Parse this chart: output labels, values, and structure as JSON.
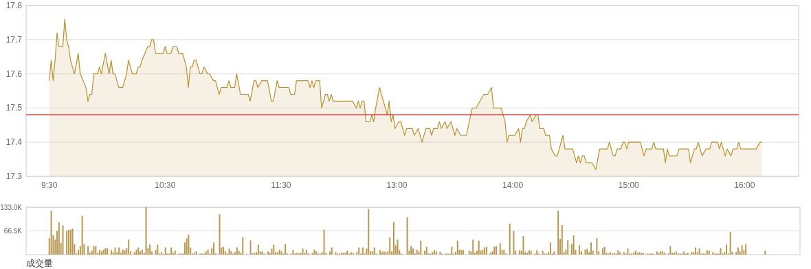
{
  "chart_data": [
    {
      "type": "area",
      "color": "#b8922e",
      "grid": "y",
      "categories": [
        "9:30",
        null,
        null,
        null,
        null,
        null,
        null,
        null,
        null,
        null,
        null,
        null,
        null,
        null,
        null,
        null,
        null,
        null,
        null,
        null,
        null,
        null,
        null,
        null,
        null,
        null,
        null,
        null,
        null,
        null,
        null,
        null,
        null,
        null,
        null,
        null,
        null,
        null,
        null,
        null,
        null,
        null,
        null,
        null,
        null,
        null,
        null,
        null,
        null,
        null,
        null,
        null,
        null,
        null,
        null,
        null,
        null,
        null,
        null,
        null,
        "10:30",
        null,
        null,
        null,
        null,
        null,
        null,
        null,
        null,
        null,
        null,
        null,
        null,
        null,
        null,
        null,
        null,
        null,
        null,
        null,
        null,
        null,
        null,
        null,
        null,
        null,
        null,
        null,
        null,
        null,
        null,
        null,
        null,
        null,
        null,
        null,
        null,
        null,
        null,
        null,
        null,
        null,
        null,
        null,
        null,
        null,
        null,
        null,
        null,
        null,
        null,
        null,
        null,
        null,
        null,
        null,
        null,
        null,
        null,
        null,
        "11:30",
        null,
        null,
        null,
        null,
        null,
        null,
        null,
        null,
        null,
        null,
        null,
        null,
        null,
        null,
        null,
        null,
        null,
        null,
        null,
        null,
        null,
        null,
        null,
        null,
        null,
        null,
        null,
        null,
        null,
        null,
        null,
        null,
        null,
        null,
        null,
        null,
        null,
        null,
        null,
        null,
        null,
        null,
        null,
        null,
        null,
        null,
        null,
        null,
        null,
        null,
        null,
        null,
        null,
        null,
        null,
        null,
        null,
        null,
        null,
        "13:00",
        null,
        null,
        null,
        null,
        null,
        null,
        null,
        null,
        null,
        null,
        null,
        null,
        null,
        null,
        null,
        null,
        null,
        null,
        null,
        null,
        null,
        null,
        null,
        null,
        null,
        null,
        null,
        null,
        null,
        null,
        null,
        null,
        null,
        null,
        null,
        null,
        null,
        null,
        null,
        null,
        null,
        null,
        null,
        null,
        null,
        null,
        null,
        null,
        null,
        null,
        null,
        null,
        null,
        null,
        null,
        null,
        null,
        null,
        null,
        "14:00",
        null,
        null,
        null,
        null,
        null,
        null,
        null,
        null,
        null,
        null,
        null,
        null,
        null,
        null,
        null,
        null,
        null,
        null,
        null,
        null,
        null,
        null,
        null,
        null,
        null,
        null,
        null,
        null,
        null,
        null,
        null,
        null,
        null,
        null,
        null,
        null,
        null,
        null,
        null,
        null,
        null,
        null,
        null,
        null,
        null,
        null,
        null,
        null,
        null,
        null,
        null,
        null,
        null,
        null,
        null,
        null,
        null,
        null,
        null,
        "15:00",
        null,
        null,
        null,
        null,
        null,
        null,
        null,
        null,
        null,
        null,
        null,
        null,
        null,
        null,
        null,
        null,
        null,
        null,
        null,
        null,
        null,
        null,
        null,
        null,
        null,
        null,
        null,
        null,
        null,
        null,
        null,
        null,
        null,
        null,
        null,
        null,
        null,
        null,
        null,
        null,
        null,
        null,
        null,
        null,
        null,
        null,
        null,
        null,
        null,
        null,
        null,
        null,
        null,
        null,
        null,
        null,
        null,
        null,
        null,
        "16:00",
        null,
        null,
        null,
        null,
        null,
        null,
        null,
        null,
        null,
        null
      ],
      "values": [
        17.58,
        17.64,
        17.58,
        17.64,
        17.72,
        17.68,
        null,
        17.68,
        17.76,
        17.7,
        17.68,
        17.64,
        null,
        17.6,
        null,
        17.66,
        17.6,
        null,
        null,
        17.56,
        17.52,
        17.54,
        17.54,
        17.6,
        null,
        17.6,
        17.62,
        17.6,
        null,
        17.66,
        null,
        17.6,
        17.64,
        17.6,
        17.6,
        null,
        17.56,
        null,
        17.56,
        null,
        17.6,
        17.64,
        null,
        17.6,
        null,
        17.6,
        17.62,
        17.62,
        17.64,
        null,
        null,
        17.68,
        17.68,
        17.7,
        17.7,
        17.66,
        null,
        null,
        null,
        17.66,
        17.68,
        17.66,
        null,
        17.66,
        17.68,
        null,
        17.68,
        17.66,
        null,
        17.66,
        null,
        17.62,
        17.56,
        17.62,
        17.62,
        17.64,
        17.64,
        null,
        17.6,
        17.6,
        17.62,
        null,
        17.6,
        17.6,
        null,
        17.58,
        17.58,
        null,
        17.54,
        17.56,
        null,
        null,
        17.56,
        17.58,
        17.56,
        null,
        17.56,
        17.6,
        null,
        17.54,
        null,
        null,
        null,
        17.54,
        17.52,
        null,
        17.58,
        17.58,
        17.56,
        null,
        17.58,
        null,
        null,
        17.58,
        null,
        17.52,
        17.52,
        null,
        17.58,
        17.56,
        null,
        null,
        null,
        null,
        17.56,
        17.54,
        null,
        17.54,
        17.58,
        null,
        null,
        null,
        null,
        null,
        17.58,
        17.56,
        17.58,
        17.56,
        17.58,
        null,
        17.58,
        17.5,
        null,
        17.54,
        17.54,
        17.52,
        17.54,
        17.52,
        null,
        null,
        null,
        null,
        null,
        null,
        null,
        null,
        null,
        17.52,
        null,
        17.5,
        17.52,
        17.5,
        17.52,
        17.52,
        17.46,
        null,
        17.46,
        17.48,
        17.46,
        17.5,
        null,
        17.56,
        null,
        17.52,
        null,
        17.48,
        17.52,
        17.46,
        17.48,
        17.44,
        null,
        17.46,
        17.46,
        null,
        17.42,
        17.44,
        null,
        null,
        17.44,
        17.42,
        null,
        17.44,
        null,
        17.4,
        null,
        17.44,
        null,
        17.44,
        17.42,
        17.44,
        null,
        17.44,
        17.46,
        17.44,
        null,
        17.46,
        17.44,
        null,
        17.46,
        null,
        17.42,
        17.44,
        null,
        17.42,
        null,
        null,
        17.42,
        null,
        null,
        17.5,
        null,
        17.5,
        null,
        17.52,
        null,
        17.54,
        null,
        17.54,
        null,
        17.56,
        17.5,
        null,
        null,
        null,
        17.5,
        null,
        17.46,
        17.4,
        17.42,
        null,
        null,
        17.42,
        null,
        17.44,
        17.4,
        17.44,
        17.44,
        17.46,
        null,
        17.48,
        17.46,
        null,
        17.48,
        17.48,
        17.44,
        null,
        17.44,
        17.42,
        null,
        17.42,
        17.38,
        null,
        17.36,
        17.36,
        null,
        null,
        17.42,
        17.38,
        null,
        null,
        null,
        17.38,
        null,
        17.34,
        17.36,
        17.34,
        17.36,
        17.36,
        17.34,
        null,
        null,
        17.34,
        null,
        17.32,
        null,
        17.38,
        null,
        null,
        null,
        17.38,
        17.4,
        null,
        17.36,
        17.36,
        17.38,
        null,
        17.38,
        17.4,
        17.4,
        17.38,
        17.4,
        null,
        null,
        null,
        null,
        null,
        17.4,
        null,
        17.36,
        17.38,
        null,
        null,
        17.38,
        17.4,
        17.38,
        null,
        null,
        null,
        17.38,
        17.34,
        17.38,
        17.36,
        null,
        null,
        null,
        17.36,
        17.38,
        null,
        null,
        null,
        null,
        17.38,
        17.34,
        null,
        17.38,
        17.38,
        17.4,
        17.38,
        17.36,
        null,
        17.38,
        null,
        17.38,
        17.4,
        null,
        null,
        17.4,
        17.38,
        17.4,
        null,
        17.36,
        17.38,
        null,
        17.36,
        17.38,
        null,
        17.38,
        17.4,
        17.38,
        null,
        null,
        null,
        null,
        null,
        null,
        null,
        17.38,
        null,
        17.4,
        17.4,
        null
      ],
      "ylim": [
        17.3,
        17.8
      ],
      "yticks": [
        17.3,
        17.4,
        17.5,
        17.6,
        17.7,
        17.8
      ],
      "ref_lines": [
        {
          "axis": "y",
          "value": 17.48,
          "color": "#cc0000"
        }
      ]
    },
    {
      "type": "bar",
      "color": "#b8974e",
      "grid": "y",
      "tick_labels": "y",
      "title": "成交量",
      "categories": [
        null,
        null,
        null,
        null,
        null,
        null,
        null,
        null,
        null,
        null,
        null,
        null,
        null,
        null,
        null,
        null,
        null,
        null,
        null,
        null,
        null,
        null,
        null,
        null,
        null,
        null,
        null,
        null,
        null,
        null,
        null,
        null,
        null,
        null,
        null,
        null,
        null,
        null,
        null,
        null,
        null,
        null,
        null,
        null,
        null,
        null,
        null,
        null,
        null,
        null,
        null,
        null,
        null,
        null,
        null,
        null,
        null,
        null,
        null,
        null,
        null,
        null,
        null,
        null,
        null,
        null,
        null,
        null,
        null,
        null,
        null,
        null,
        null,
        null,
        null,
        null,
        null,
        null,
        null,
        null,
        null,
        null,
        null,
        null,
        null,
        null,
        null,
        null,
        null,
        null,
        null,
        null,
        null,
        null,
        null,
        null,
        null,
        null,
        null,
        null,
        null,
        null,
        null,
        null,
        null,
        null,
        null,
        null,
        null,
        null,
        null,
        null,
        null,
        null,
        null,
        null,
        null,
        null,
        null,
        null,
        null,
        null,
        null,
        null,
        null,
        null,
        null,
        null,
        null,
        null,
        null,
        null,
        null,
        null,
        null,
        null,
        null,
        null,
        null,
        null,
        null,
        null,
        null,
        null,
        null,
        null,
        null,
        null,
        null,
        null,
        null,
        null,
        null,
        null,
        null,
        null,
        null,
        null,
        null,
        null,
        null,
        null,
        null,
        null,
        null,
        null,
        null,
        null,
        null,
        null,
        null,
        null,
        null,
        null,
        null,
        null,
        null,
        null,
        null,
        null,
        null,
        null,
        null,
        null,
        null,
        null,
        null,
        null,
        null,
        null,
        null,
        null,
        null,
        null,
        null,
        null,
        null,
        null,
        null,
        null,
        null,
        null,
        null,
        null,
        null,
        null,
        null,
        null,
        null,
        null,
        null,
        null,
        null,
        null,
        null,
        null,
        null,
        null,
        null,
        null,
        null,
        null,
        null,
        null,
        null,
        null,
        null,
        null,
        null,
        null,
        null,
        null,
        null,
        null,
        null,
        null,
        null,
        null,
        null,
        null,
        null,
        null,
        null,
        null,
        null,
        null,
        null,
        null,
        null,
        null,
        null,
        null,
        null,
        null,
        null,
        null,
        null,
        null,
        null,
        null,
        null,
        null,
        null,
        null,
        null,
        null,
        null,
        null,
        null,
        null,
        null,
        null,
        null,
        null,
        null,
        null,
        null,
        null,
        null,
        null,
        null,
        null,
        null,
        null,
        null,
        null,
        null,
        null,
        null,
        null,
        null,
        null,
        null,
        null,
        null,
        null,
        null,
        null,
        null,
        null,
        null,
        null,
        null,
        null,
        null,
        null,
        null,
        null,
        null,
        null,
        null,
        null,
        null,
        null,
        null,
        null,
        null,
        null,
        null,
        null,
        null,
        null,
        null,
        null,
        null,
        null,
        null,
        null,
        null,
        null,
        null,
        null,
        null,
        null,
        null,
        null,
        null,
        null,
        null,
        null,
        null,
        null,
        null,
        null,
        null,
        null,
        null,
        null,
        null,
        null,
        null,
        null,
        null,
        null,
        null,
        null,
        null,
        null,
        null,
        null,
        null,
        null,
        null,
        null,
        null,
        null,
        null,
        null,
        null,
        null,
        null
      ],
      "values": [
        46,
        123,
        54,
        42,
        67,
        91,
        33,
        82,
        null,
        67,
        70,
        70,
        73,
        29,
        3,
        13,
        24,
        109,
        29,
        null,
        24,
        5,
        11,
        24,
        24,
        5,
        13,
        9,
        14,
        18,
        18,
        null,
        13,
        7,
        20,
        7,
        20,
        5,
        14,
        12,
        18,
        42,
        9,
        null,
        7,
        13,
        20,
        9,
        14,
        5,
        133,
        18,
        28,
        9,
        null,
        13,
        28,
        3,
        7,
        2,
        20,
        3,
        3,
        20,
        5,
        11,
        null,
        3,
        3,
        3,
        34,
        46,
        56,
        20,
        3,
        5,
        9,
        null,
        3,
        3,
        3,
        9,
        14,
        3,
        18,
        34,
        3,
        null,
        113,
        20,
        22,
        9,
        3,
        17,
        9,
        3,
        7,
        20,
        11,
        5,
        48,
        null,
        2,
        null,
        40,
        3,
        5,
        7,
        28,
        9,
        9,
        3,
        null,
        9,
        5,
        17,
        28,
        7,
        7,
        14,
        9,
        3,
        29,
        3,
        null,
        3,
        13,
        3,
        5,
        3,
        5,
        17,
        5,
        14,
        3,
        null,
        5,
        14,
        9,
        3,
        3,
        7,
        70,
        5,
        null,
        9,
        20,
        null,
        7,
        3,
        3,
        5,
        5,
        5,
        11,
        3,
        7,
        5,
        null,
        7,
        20,
        3,
        20,
        3,
        17,
        128,
        9,
        9,
        20,
        3,
        null,
        13,
        7,
        9,
        7,
        9,
        48,
        9,
        91,
        26,
        42,
        13,
        3,
        null,
        null,
        105,
        11,
        24,
        17,
        3,
        14,
        9,
        39,
        null,
        11,
        22,
        3,
        3,
        7,
        12,
        9,
        null,
        8,
        3,
        null,
        3,
        3,
        3,
        22,
        3,
        8,
        39,
        14,
        13,
        13,
        null,
        null,
        11,
        9,
        42,
        5,
        11,
        39,
        11,
        14,
        20,
        22,
        null,
        5,
        9,
        22,
        24,
        null,
        32,
        13,
        14,
        3,
        null,
        87,
        null,
        67,
        11,
        null,
        12,
        11,
        52,
        7,
        5,
        12,
        11,
        null,
        3,
        12,
        3,
        null,
        11,
        3,
        3,
        7,
        34,
        3,
        9,
        null,
        123,
        44,
        83,
        7,
        14,
        40,
        null,
        30,
        54,
        13,
        null,
        26,
        9,
        null,
        14,
        16,
        7,
        34,
        11,
        null,
        46,
        9,
        null,
        18,
        22,
        5,
        3,
        7,
        3,
        5,
        3,
        12,
        7,
        null,
        7,
        3,
        17,
        3,
        3,
        5,
        11,
        5,
        7,
        5,
        5,
        null,
        3,
        3,
        3,
        3,
        null,
        9,
        5,
        9,
        9,
        5,
        null,
        3,
        24,
        5,
        5,
        9,
        3,
        3,
        3,
        9,
        3,
        5,
        null,
        7,
        7,
        20,
        7,
        17,
        3,
        3,
        3,
        12,
        11,
        null,
        7,
        3,
        3,
        3,
        18,
        3,
        7,
        28,
        3,
        64,
        8,
        null,
        7,
        20,
        9,
        26,
        13,
        29,
        null,
        null,
        null,
        null,
        null,
        null,
        null,
        null,
        null,
        11
      ],
      "ylim": [
        0,
        133
      ],
      "yticks": [
        {
          "value": 133,
          "label": "133.0K"
        },
        {
          "value": 66.5,
          "label": "66.5K"
        }
      ]
    }
  ]
}
